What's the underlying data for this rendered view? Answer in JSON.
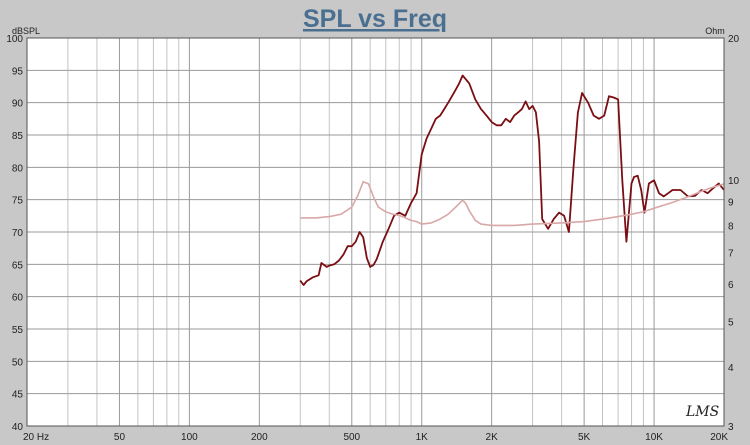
{
  "chart_data": {
    "type": "line",
    "title": "SPL vs Freq",
    "y_left_unit": "dBSPL",
    "y_right_unit": "Ohm",
    "x_scale": "log",
    "xlim": [
      20,
      20000
    ],
    "ylim": [
      40,
      100
    ],
    "y2lim": [
      3,
      20
    ],
    "x_tick_labels": [
      {
        "value": 20,
        "label": "20  Hz"
      },
      {
        "value": 50,
        "label": "50"
      },
      {
        "value": 100,
        "label": "100"
      },
      {
        "value": 200,
        "label": "200"
      },
      {
        "value": 500,
        "label": "500"
      },
      {
        "value": 1000,
        "label": "1K"
      },
      {
        "value": 2000,
        "label": "2K"
      },
      {
        "value": 5000,
        "label": "5K"
      },
      {
        "value": 10000,
        "label": "10K"
      },
      {
        "value": 20000,
        "label": "20K"
      }
    ],
    "y_ticks": [
      40,
      45,
      50,
      55,
      60,
      65,
      70,
      75,
      80,
      85,
      90,
      95,
      100
    ],
    "y2_ticks": [
      3,
      4,
      5,
      6,
      7,
      8,
      9,
      10,
      20
    ],
    "grid": true,
    "series": [
      {
        "axis": "left",
        "color": "#7a0e12",
        "x": [
          300,
          310,
          320,
          340,
          360,
          370,
          390,
          400,
          420,
          440,
          460,
          480,
          500,
          520,
          540,
          560,
          580,
          600,
          620,
          640,
          680,
          720,
          760,
          800,
          850,
          900,
          950,
          1000,
          1050,
          1100,
          1150,
          1200,
          1250,
          1300,
          1350,
          1400,
          1450,
          1500,
          1600,
          1700,
          1800,
          1900,
          2000,
          2100,
          2200,
          2300,
          2400,
          2500,
          2600,
          2700,
          2800,
          2900,
          3000,
          3100,
          3200,
          3300,
          3500,
          3700,
          3900,
          4100,
          4300,
          4500,
          4700,
          4900,
          5200,
          5500,
          5800,
          6100,
          6400,
          6700,
          7000,
          7300,
          7600,
          8000,
          8200,
          8500,
          8800,
          9100,
          9500,
          10000,
          10500,
          11000,
          11500,
          12000,
          13000,
          14000,
          15000,
          16000,
          17000,
          18000,
          19000,
          20000
        ],
        "y": [
          62.5,
          61.8,
          62.4,
          63.0,
          63.3,
          65.2,
          64.6,
          64.8,
          65.0,
          65.6,
          66.5,
          67.8,
          67.8,
          68.5,
          70.0,
          69.2,
          66.0,
          64.6,
          64.9,
          65.8,
          68.5,
          70.5,
          72.5,
          73.0,
          72.5,
          74.5,
          76.0,
          82.0,
          84.5,
          86.0,
          87.5,
          88.0,
          89.0,
          90.0,
          91.0,
          92.0,
          93.0,
          94.2,
          93.0,
          90.5,
          89.0,
          88.0,
          87.0,
          86.5,
          86.5,
          87.5,
          87.0,
          88.0,
          88.5,
          89.0,
          90.2,
          89.0,
          89.5,
          88.5,
          84.0,
          72.0,
          70.5,
          72.0,
          73.0,
          72.5,
          70.0,
          80.0,
          88.5,
          91.5,
          90.0,
          88.0,
          87.5,
          88.0,
          91.0,
          90.8,
          90.5,
          78.0,
          68.5,
          77.5,
          78.5,
          78.7,
          76.5,
          73.0,
          77.5,
          78.0,
          76.0,
          75.5,
          76.0,
          76.5,
          76.5,
          75.5,
          75.6,
          76.5,
          76.0,
          76.8,
          77.5,
          76.5
        ]
      },
      {
        "axis": "right",
        "color": "#d8a8a8",
        "x": [
          300,
          350,
          400,
          450,
          500,
          530,
          560,
          590,
          620,
          650,
          700,
          750,
          800,
          850,
          900,
          950,
          1000,
          1100,
          1200,
          1300,
          1400,
          1500,
          1550,
          1600,
          1700,
          1800,
          2000,
          2500,
          3000,
          4000,
          5000,
          6000,
          7000,
          8000,
          9000,
          10000,
          12000,
          14000,
          16000,
          18000,
          20000
        ],
        "y": [
          8.3,
          8.3,
          8.35,
          8.45,
          8.75,
          9.25,
          9.9,
          9.8,
          9.2,
          8.75,
          8.55,
          8.45,
          8.4,
          8.3,
          8.2,
          8.15,
          8.05,
          8.1,
          8.25,
          8.45,
          8.75,
          9.05,
          8.9,
          8.6,
          8.2,
          8.05,
          8.0,
          8.0,
          8.05,
          8.1,
          8.15,
          8.25,
          8.35,
          8.45,
          8.55,
          8.7,
          8.95,
          9.2,
          9.45,
          9.65,
          9.8
        ]
      }
    ]
  }
}
